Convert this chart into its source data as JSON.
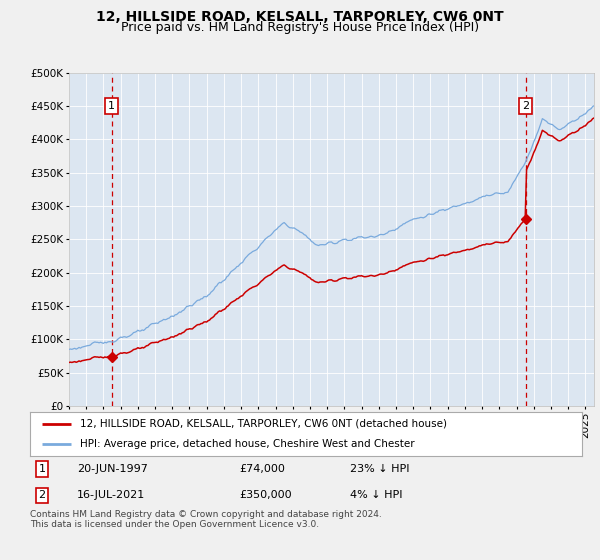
{
  "title": "12, HILLSIDE ROAD, KELSALL, TARPORLEY, CW6 0NT",
  "subtitle": "Price paid vs. HM Land Registry's House Price Index (HPI)",
  "ylim": [
    0,
    500000
  ],
  "xlim_start": 1995.0,
  "xlim_end": 2025.5,
  "yticks": [
    0,
    50000,
    100000,
    150000,
    200000,
    250000,
    300000,
    350000,
    400000,
    450000,
    500000
  ],
  "ytick_labels": [
    "£0",
    "£50K",
    "£100K",
    "£150K",
    "£200K",
    "£250K",
    "£300K",
    "£350K",
    "£400K",
    "£450K",
    "£500K"
  ],
  "xticks": [
    1995,
    1996,
    1997,
    1998,
    1999,
    2000,
    2001,
    2002,
    2003,
    2004,
    2005,
    2006,
    2007,
    2008,
    2009,
    2010,
    2011,
    2012,
    2013,
    2014,
    2015,
    2016,
    2017,
    2018,
    2019,
    2020,
    2021,
    2022,
    2023,
    2024,
    2025
  ],
  "hpi_color": "#7aaadd",
  "price_color": "#cc0000",
  "marker_color": "#cc0000",
  "dashed_line_color": "#cc0000",
  "plot_bg_color": "#dce6f1",
  "fig_bg_color": "#f0f0f0",
  "legend_label_price": "12, HILLSIDE ROAD, KELSALL, TARPORLEY, CW6 0NT (detached house)",
  "legend_label_hpi": "HPI: Average price, detached house, Cheshire West and Chester",
  "sale1_date": 1997.47,
  "sale1_price": 74000,
  "sale2_date": 2021.54,
  "sale2_price": 350000,
  "footer": "Contains HM Land Registry data © Crown copyright and database right 2024.\nThis data is licensed under the Open Government Licence v3.0.",
  "title_fontsize": 10,
  "subtitle_fontsize": 9,
  "tick_fontsize": 7.5,
  "legend_fontsize": 7.5,
  "footer_fontsize": 6.5,
  "annot_fontsize": 8
}
